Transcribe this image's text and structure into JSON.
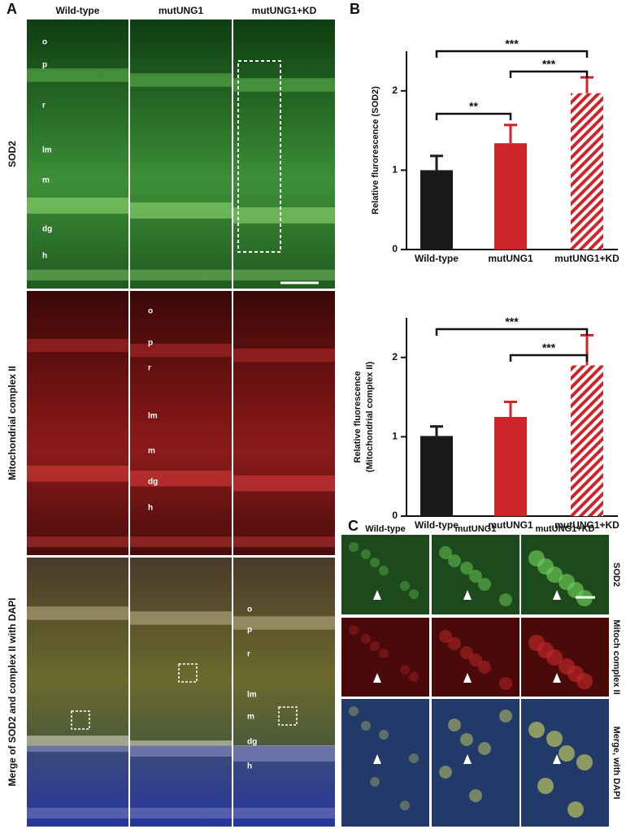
{
  "panel_labels": [
    "A",
    "B",
    "C"
  ],
  "panel_a": {
    "columns": [
      "Wild-type",
      "mutUNG1",
      "mutUNG1+KD"
    ],
    "rows": [
      "SOD2",
      "Mitochondrial complex II",
      "Merge  of SOD2 and complex II with DAPI"
    ],
    "layers": [
      "o",
      "p",
      "r",
      "lm",
      "m",
      "dg",
      "h"
    ]
  },
  "panel_c": {
    "columns": [
      "Wild-type",
      "mutUNG1",
      "mutUNG1+KD"
    ],
    "rows": [
      "SOD2",
      "Mitoch complex II",
      "Merge, with DAPI"
    ]
  },
  "chart_data": [
    {
      "type": "bar",
      "y_label": [
        "Relative flurorescence (SOD2)"
      ],
      "categories": [
        "Wild-type",
        "mutUNG1",
        "mutUNG1+KD"
      ],
      "values": [
        1.0,
        1.34,
        1.97
      ],
      "errors": [
        0.18,
        0.23,
        0.2
      ],
      "colors": [
        "#1a1a1a",
        "#d0242b",
        "#d0242b"
      ],
      "hatch": [
        false,
        false,
        true
      ],
      "ylim": [
        0,
        2.5
      ],
      "yticks": [
        0,
        1,
        2
      ],
      "brackets": [
        {
          "from": 0,
          "to": 1,
          "label": "**"
        },
        {
          "from": 0,
          "to": 2,
          "label": "***"
        },
        {
          "from": 1,
          "to": 2,
          "label": "***"
        }
      ]
    },
    {
      "type": "bar",
      "y_label": [
        "Relative fluorescence",
        "(Mitochondrial complex II)"
      ],
      "categories": [
        "Wild-type",
        "mutUNG1",
        "mutUNG1+KD"
      ],
      "values": [
        1.01,
        1.25,
        1.9
      ],
      "errors": [
        0.12,
        0.19,
        0.38
      ],
      "colors": [
        "#1a1a1a",
        "#d0242b",
        "#d0242b"
      ],
      "hatch": [
        false,
        false,
        true
      ],
      "ylim": [
        0,
        2.5
      ],
      "yticks": [
        0,
        1,
        2
      ],
      "brackets": [
        {
          "from": 0,
          "to": 2,
          "label": "***"
        },
        {
          "from": 1,
          "to": 2,
          "label": "***"
        }
      ]
    }
  ]
}
